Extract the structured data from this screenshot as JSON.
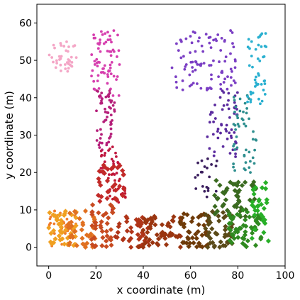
{
  "chart_data": {
    "type": "scatter",
    "xlabel": "x coordinate (m)",
    "ylabel": "y coordinate (m)",
    "xlim": [
      -5,
      100
    ],
    "ylim": [
      -5,
      65
    ],
    "xticks": [
      0,
      20,
      40,
      60,
      80,
      100
    ],
    "yticks": [
      0,
      10,
      20,
      30,
      40,
      50,
      60
    ],
    "grid": false,
    "legend": "none",
    "marker_types": [
      "circle",
      "diamond"
    ],
    "regions": [
      {
        "marker": "circle",
        "color": "#f4a6c6",
        "x_range": [
          0,
          12
        ],
        "y_range": [
          47,
          55
        ],
        "count": 40
      },
      {
        "marker": "circle",
        "color": "#d63fae",
        "x_range": [
          18,
          30
        ],
        "y_range": [
          40,
          58
        ],
        "count": 70
      },
      {
        "marker": "circle",
        "color": "#b5207a",
        "x_range": [
          20,
          28
        ],
        "y_range": [
          26,
          42
        ],
        "count": 55
      },
      {
        "marker": "circle",
        "color": "#c0183f",
        "x_range": [
          22,
          30
        ],
        "y_range": [
          19,
          27
        ],
        "count": 30
      },
      {
        "marker": "circle",
        "color": "#7b3fc4",
        "x_range": [
          52,
          80
        ],
        "y_range": [
          42,
          58
        ],
        "count": 95
      },
      {
        "marker": "circle",
        "color": "#5a2a9e",
        "x_range": [
          67,
          80
        ],
        "y_range": [
          24,
          42
        ],
        "count": 55
      },
      {
        "marker": "circle",
        "color": "#3b1f5e",
        "x_range": [
          62,
          72
        ],
        "y_range": [
          13,
          25
        ],
        "count": 22
      },
      {
        "marker": "circle",
        "color": "#2f8f8f",
        "x_range": [
          78,
          88
        ],
        "y_range": [
          20,
          42
        ],
        "count": 50
      },
      {
        "marker": "circle",
        "color": "#2ab0d0",
        "x_range": [
          84,
          92
        ],
        "y_range": [
          38,
          58
        ],
        "count": 45
      },
      {
        "marker": "circle",
        "color": "#f07a2a",
        "x_range": [
          0,
          12
        ],
        "y_range": [
          0,
          10
        ],
        "count": 35
      },
      {
        "marker": "circle",
        "color": "#c01830",
        "x_range": [
          25,
          33
        ],
        "y_range": [
          10,
          20
        ],
        "count": 20
      },
      {
        "marker": "diamond",
        "color": "#f0a020",
        "x_range": [
          0,
          12
        ],
        "y_range": [
          0,
          10
        ],
        "count": 45
      },
      {
        "marker": "diamond",
        "color": "#e07020",
        "x_range": [
          8,
          20
        ],
        "y_range": [
          0,
          10
        ],
        "count": 40
      },
      {
        "marker": "diamond",
        "color": "#c74a20",
        "x_range": [
          18,
          28
        ],
        "y_range": [
          0,
          12
        ],
        "count": 40
      },
      {
        "marker": "diamond",
        "color": "#c22a28",
        "x_range": [
          20,
          32
        ],
        "y_range": [
          12,
          22
        ],
        "count": 35
      },
      {
        "marker": "diamond",
        "color": "#b03418",
        "x_range": [
          28,
          42
        ],
        "y_range": [
          0,
          9
        ],
        "count": 40
      },
      {
        "marker": "diamond",
        "color": "#9a3510",
        "x_range": [
          38,
          56
        ],
        "y_range": [
          0,
          9
        ],
        "count": 55
      },
      {
        "marker": "diamond",
        "color": "#6e3a08",
        "x_range": [
          55,
          68
        ],
        "y_range": [
          0,
          9
        ],
        "count": 45
      },
      {
        "marker": "diamond",
        "color": "#5a4a18",
        "x_range": [
          66,
          78
        ],
        "y_range": [
          0,
          10
        ],
        "count": 45
      },
      {
        "marker": "diamond",
        "color": "#3a6a20",
        "x_range": [
          70,
          88
        ],
        "y_range": [
          8,
          18
        ],
        "count": 50
      },
      {
        "marker": "diamond",
        "color": "#2f8a20",
        "x_range": [
          76,
          90
        ],
        "y_range": [
          0,
          10
        ],
        "count": 55
      },
      {
        "marker": "diamond",
        "color": "#28b028",
        "x_range": [
          86,
          93
        ],
        "y_range": [
          0,
          18
        ],
        "count": 30
      }
    ]
  }
}
